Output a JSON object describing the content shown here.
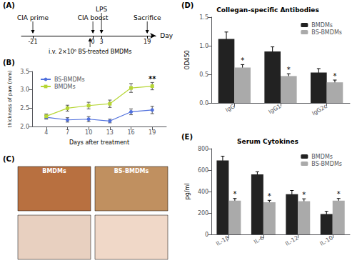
{
  "chart_data": [
    {
      "type": "timeline",
      "annotations": [
        {
          "text": "(A)"
        },
        {
          "x": -21,
          "text": "CIA prime",
          "position": "above"
        },
        {
          "x": 0,
          "text": "CIA boost",
          "position": "above"
        },
        {
          "x": 3,
          "text": "LPS",
          "position": "above"
        },
        {
          "x": 19,
          "text": "Sacrifice",
          "position": "above"
        },
        {
          "x": -1,
          "text": "i.v. 2×10⁶ BS-treated BMDMs",
          "position": "below"
        }
      ],
      "xlabel": "Day",
      "xlim": [
        -25,
        22
      ],
      "xticks": [
        -21,
        0,
        3,
        19
      ]
    },
    {
      "type": "line",
      "annotations": [
        {
          "text": "(B)"
        },
        {
          "text": "**",
          "x": 19,
          "y": 3.2
        }
      ],
      "xlabel": "Days after treatment",
      "ylabel": "thickness of paw (mm)",
      "x": [
        4,
        7,
        10,
        13,
        16,
        19
      ],
      "series": [
        {
          "name": "BS-BMDMs",
          "marker": "circle",
          "values": [
            2.25,
            2.18,
            2.2,
            2.15,
            2.4,
            2.45
          ],
          "errors": [
            0.05,
            0.06,
            0.07,
            0.05,
            0.08,
            0.1
          ]
        },
        {
          "name": "BMDMs",
          "marker": "square",
          "values": [
            2.28,
            2.5,
            2.57,
            2.62,
            3.05,
            3.1
          ],
          "errors": [
            0.06,
            0.08,
            0.09,
            0.1,
            0.12,
            0.1
          ]
        }
      ],
      "xlim": [
        2,
        21
      ],
      "xticks": [
        4,
        7,
        10,
        13,
        16,
        19
      ],
      "ylim": [
        2.0,
        3.5
      ],
      "yticks": [
        {
          "value": 2.0,
          "label": "2.0"
        },
        2.5,
        {
          "value": 3.0,
          "label": "3.0"
        },
        3.5
      ],
      "legend": "upper left",
      "grid": false
    },
    {
      "type": "image_grid",
      "annotations": [
        {
          "text": "(C)"
        }
      ],
      "categories": [
        "BMDMs",
        "BS-BMDMs"
      ],
      "colors": [
        "#b87040",
        "#c09060",
        "#e8d0c0",
        "#f0d8c8"
      ]
    },
    {
      "type": "bar",
      "title": "Collegan-specific Antibodies",
      "ylabel": "OD450",
      "annotations": [
        {
          "text": "(D)"
        },
        {
          "text": "*",
          "category": "IgG",
          "series": "BS-BMDMs"
        },
        {
          "text": "*",
          "category": "IgG1",
          "series": "BS-BMDMs"
        },
        {
          "text": "*",
          "category": "IgG2c",
          "series": "BS-BMDMs"
        }
      ],
      "categories": [
        "IgG",
        "IgG1",
        "IgG2c"
      ],
      "series": [
        {
          "name": "BMDMs",
          "color": "#222222",
          "values": [
            1.12,
            0.9,
            0.53
          ],
          "errors": [
            0.12,
            0.08,
            0.07
          ]
        },
        {
          "name": "BS-BMDMs",
          "color": "#aaaaaa",
          "values": [
            0.62,
            0.47,
            0.36
          ],
          "errors": [
            0.05,
            0.04,
            0.04
          ]
        }
      ],
      "ylim": [
        0.0,
        1.5
      ],
      "yticks": [
        {
          "value": 0.0,
          "label": "0.0"
        },
        0.5,
        {
          "value": 1.0,
          "label": "1.0"
        },
        1.5
      ],
      "legend": "upper right",
      "grid": false
    },
    {
      "type": "bar",
      "title": "Serum Cytokines",
      "ylabel": "pg/ml",
      "annotations": [
        {
          "text": "(E)"
        },
        {
          "text": "*",
          "category": "IL-1β",
          "series": "BS-BMDMs"
        },
        {
          "text": "*",
          "category": "IL-6",
          "series": "BS-BMDMs"
        },
        {
          "text": "*",
          "category": "IL-12",
          "series": "BS-BMDMs"
        },
        {
          "text": "*",
          "category": "IL-10",
          "series": "BS-BMDMs"
        }
      ],
      "categories": [
        "IL-1β",
        "IL-6",
        "IL-12",
        "IL-10"
      ],
      "series": [
        {
          "name": "BMDMs",
          "color": "#222222",
          "values": [
            690,
            560,
            375,
            190
          ],
          "errors": [
            40,
            25,
            35,
            25
          ]
        },
        {
          "name": "BS-BMDMs",
          "color": "#aaaaaa",
          "values": [
            315,
            300,
            310,
            315
          ],
          "errors": [
            20,
            18,
            22,
            20
          ]
        }
      ],
      "ylim": [
        0,
        800
      ],
      "yticks": [
        0,
        200,
        400,
        600,
        800
      ],
      "legend": "upper right",
      "grid": false
    }
  ]
}
